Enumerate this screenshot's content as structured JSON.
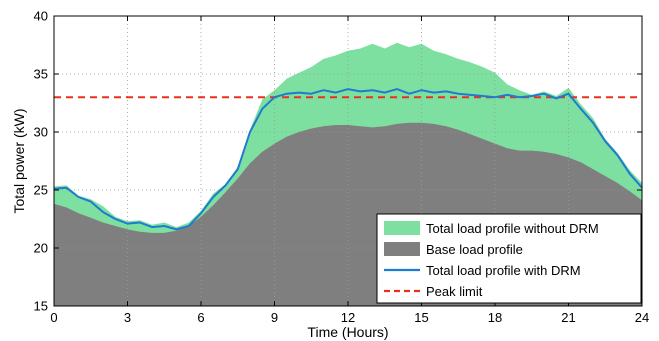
{
  "chart_data": {
    "type": "area",
    "title": "",
    "xlabel": "Time (Hours)",
    "ylabel": "Total power (kW)",
    "xlim": [
      0,
      24
    ],
    "ylim": [
      15,
      40
    ],
    "xticks": [
      0,
      3,
      6,
      9,
      12,
      15,
      18,
      21,
      24
    ],
    "yticks": [
      15,
      20,
      25,
      30,
      35,
      40
    ],
    "grid": true,
    "legend_position": "bottom-right",
    "x": [
      0,
      0.5,
      1,
      1.5,
      2,
      2.5,
      3,
      3.5,
      4,
      4.5,
      5,
      5.5,
      6,
      6.5,
      7,
      7.5,
      8,
      8.5,
      9,
      9.5,
      10,
      10.5,
      11,
      11.5,
      12,
      12.5,
      13,
      13.5,
      14,
      14.5,
      15,
      15.5,
      16,
      16.5,
      17,
      17.5,
      18,
      18.5,
      19,
      19.5,
      20,
      20.5,
      21,
      21.5,
      22,
      22.5,
      23,
      23.5,
      24
    ],
    "series": [
      {
        "name": "Total load profile without DRM",
        "style": "filled-area",
        "color": "#7ee0a0",
        "values": [
          25.3,
          25.4,
          24.5,
          24.2,
          23.6,
          22.7,
          22.3,
          22.4,
          22.0,
          22.2,
          21.8,
          22.2,
          23.2,
          24.7,
          25.5,
          27.0,
          30.2,
          32.8,
          33.6,
          34.6,
          35.1,
          35.6,
          36.3,
          36.6,
          37.0,
          37.2,
          37.6,
          37.2,
          37.7,
          37.3,
          37.6,
          37.0,
          36.7,
          36.3,
          36.0,
          35.6,
          35.1,
          34.1,
          33.6,
          33.2,
          33.5,
          33.1,
          33.8,
          32.4,
          31.2,
          29.4,
          28.2,
          26.7,
          25.6
        ]
      },
      {
        "name": "Base load profile",
        "style": "filled-area",
        "color": "#7f7f7f",
        "values": [
          23.8,
          23.5,
          23.0,
          22.6,
          22.2,
          21.9,
          21.6,
          21.4,
          21.3,
          21.3,
          21.5,
          21.9,
          22.7,
          23.7,
          24.8,
          26.0,
          27.3,
          28.3,
          29.0,
          29.6,
          30.0,
          30.3,
          30.5,
          30.6,
          30.6,
          30.5,
          30.4,
          30.5,
          30.7,
          30.8,
          30.8,
          30.7,
          30.5,
          30.2,
          29.8,
          29.4,
          29.0,
          28.6,
          28.4,
          28.4,
          28.3,
          28.1,
          27.8,
          27.4,
          26.8,
          26.2,
          25.6,
          24.9,
          24.1
        ]
      },
      {
        "name": "Total load profile with DRM",
        "style": "line",
        "color": "#1f7bd0",
        "values": [
          25.1,
          25.2,
          24.4,
          24.0,
          23.1,
          22.5,
          22.1,
          22.2,
          21.8,
          21.9,
          21.6,
          21.9,
          23.0,
          24.4,
          25.4,
          26.8,
          30.0,
          32.0,
          33.0,
          33.3,
          33.4,
          33.3,
          33.6,
          33.4,
          33.7,
          33.5,
          33.6,
          33.4,
          33.7,
          33.3,
          33.6,
          33.4,
          33.5,
          33.3,
          33.2,
          33.1,
          33.0,
          33.2,
          33.0,
          33.1,
          33.3,
          32.9,
          33.3,
          32.0,
          30.8,
          29.2,
          28.0,
          26.4,
          25.2
        ]
      },
      {
        "name": "Peak limit",
        "style": "dashed-line",
        "color": "#e8311d",
        "constant": 33
      }
    ]
  },
  "colors": {
    "without_drm": "#7ee0a0",
    "base": "#7f7f7f",
    "with_drm": "#1f7bd0",
    "peak": "#e8311d",
    "grid": "#c8c8c8"
  }
}
